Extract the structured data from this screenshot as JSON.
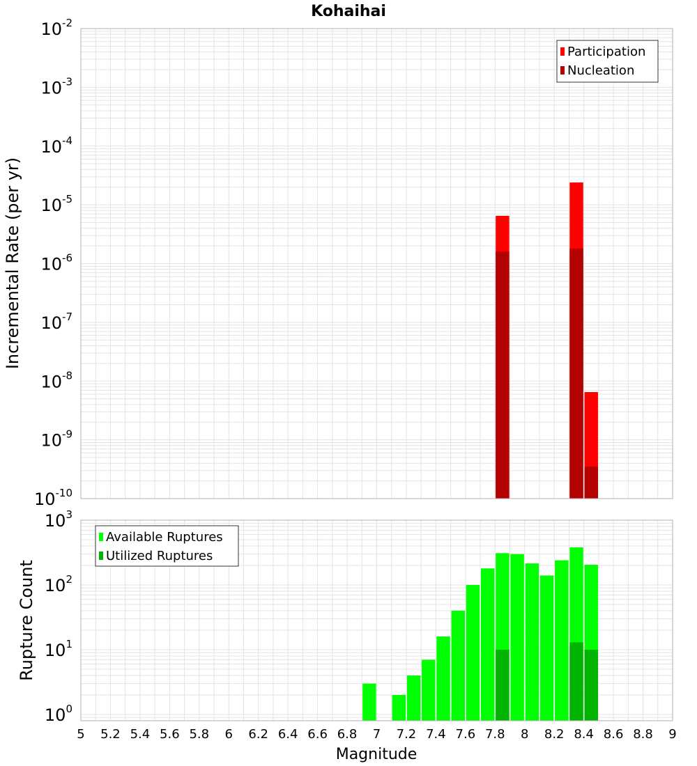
{
  "figure": {
    "title": "Kohaihai",
    "xlabel": "Magnitude"
  },
  "colors": {
    "participation": "#ff0000",
    "nucleation": "#b30000",
    "available": "#00ff00",
    "utilized": "#00b300",
    "grid": "#e3e3e3",
    "frame": "#b0b0b0"
  },
  "chart_data": [
    {
      "type": "bar",
      "panel": "top",
      "ylabel": "Incremental Rate (per yr)",
      "yscale": "log",
      "xlim": [
        5,
        9
      ],
      "ylim": [
        1e-10,
        0.01
      ],
      "grid": true,
      "legend_position": "top-right",
      "x": [
        7.85,
        8.35,
        8.45
      ],
      "series": [
        {
          "name": "Participation",
          "values": [
            6.5e-06,
            2.4e-05,
            6.5e-09
          ]
        },
        {
          "name": "Nucleation",
          "values": [
            1.6e-06,
            1.8e-06,
            3.5e-10
          ]
        }
      ],
      "ytick_exponents": [
        "-2",
        "-3",
        "-4",
        "-5",
        "-6",
        "-7",
        "-8",
        "-9",
        "-10"
      ]
    },
    {
      "type": "bar",
      "panel": "bottom",
      "ylabel": "Rupture Count",
      "yscale": "log",
      "xlim": [
        5,
        9
      ],
      "ylim": [
        0.8,
        1000
      ],
      "grid": true,
      "legend_position": "top-left",
      "x": [
        6.95,
        7.15,
        7.25,
        7.35,
        7.45,
        7.55,
        7.65,
        7.75,
        7.85,
        7.95,
        8.05,
        8.15,
        8.25,
        8.35,
        8.45
      ],
      "series": [
        {
          "name": "Available Ruptures",
          "values": [
            3,
            2,
            4,
            7,
            16,
            40,
            100,
            180,
            310,
            300,
            215,
            140,
            240,
            380,
            205
          ]
        },
        {
          "name": "Utilized Ruptures",
          "values": [
            null,
            null,
            null,
            null,
            null,
            null,
            null,
            null,
            10,
            null,
            null,
            null,
            null,
            13,
            10
          ]
        }
      ],
      "ytick_exponents": [
        "3",
        "2",
        "1",
        "0"
      ]
    }
  ],
  "x_ticks": [
    "5",
    "5.2",
    "5.4",
    "5.6",
    "5.8",
    "6",
    "6.2",
    "6.4",
    "6.6",
    "6.8",
    "7",
    "7.2",
    "7.4",
    "7.6",
    "7.8",
    "8",
    "8.2",
    "8.4",
    "8.6",
    "8.8",
    "9"
  ]
}
